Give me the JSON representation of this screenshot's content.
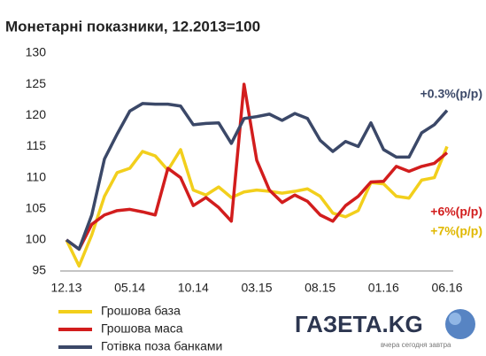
{
  "chart_data": {
    "type": "line",
    "title": "Монетарні показники, 12.2013=100",
    "categories": [
      "12.13",
      null,
      null,
      null,
      null,
      "05.14",
      null,
      null,
      null,
      null,
      "10.14",
      null,
      null,
      null,
      null,
      "03.15",
      null,
      null,
      null,
      null,
      "08.15",
      null,
      null,
      null,
      null,
      "01.16",
      null,
      null,
      null,
      null,
      "06.16"
    ],
    "series": [
      {
        "name": "Грошова база",
        "color": "#f2cf1c",
        "values": [
          100,
          95.8,
          100.8,
          107,
          110.8,
          111.5,
          114.2,
          113.5,
          111.2,
          114.5,
          108,
          107.2,
          108.5,
          106.8,
          107.7,
          108,
          107.8,
          107.5,
          107.8,
          108.2,
          107,
          104.3,
          103.7,
          104.7,
          109.2,
          109,
          107,
          106.7,
          109.6,
          110,
          115
        ]
      },
      {
        "name": "Грошова маса",
        "color": "#d21d1d",
        "values": [
          100,
          98.5,
          102.5,
          104,
          104.7,
          104.9,
          104.5,
          104,
          111.5,
          110,
          105.5,
          106.8,
          105.2,
          103,
          125,
          112.8,
          108,
          106,
          107.2,
          106.2,
          104,
          103,
          105.5,
          107,
          109.3,
          109.4,
          111.8,
          111,
          111.8,
          112.3,
          114
        ]
      },
      {
        "name": "Готівка поза банками",
        "color": "#3b4868",
        "values": [
          100,
          98.5,
          104,
          113,
          117,
          120.7,
          121.9,
          121.8,
          121.8,
          121.5,
          118.5,
          118.7,
          118.8,
          115.5,
          119.5,
          119.8,
          120.2,
          119.2,
          120.3,
          119.5,
          116,
          114.2,
          115.8,
          115,
          118.8,
          114.5,
          113.3,
          113.3,
          117.2,
          118.5,
          120.8
        ]
      }
    ],
    "ylim": [
      95,
      130
    ],
    "yticks": [
      95,
      100,
      105,
      110,
      115,
      120,
      125,
      130
    ],
    "annotations": [
      {
        "text": "+0.3%(p/p)",
        "color": "#3b4868"
      },
      {
        "text": "+6%(p/p)",
        "color": "#d21d1d"
      },
      {
        "text": "+7%(p/p)",
        "color": "#e0b800"
      }
    ],
    "logo": {
      "name": "ГАЗЕТА.KG",
      "tagline": "вчера сегодня завтра"
    }
  }
}
